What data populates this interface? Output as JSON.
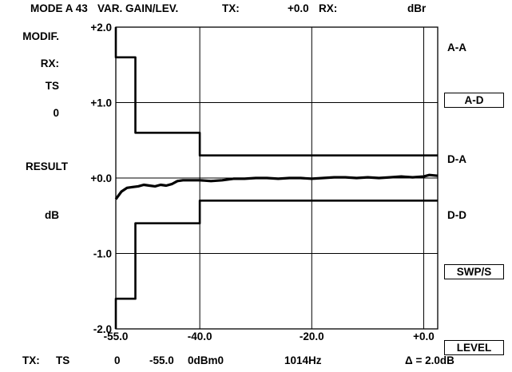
{
  "header": {
    "mode": "MODE A 43",
    "title": "VAR. GAIN/LEV.",
    "tx_label": "TX:",
    "tx_value": "+0.0",
    "rx_label": "RX:",
    "unit": "dBr"
  },
  "left_panel": {
    "modif": "MODIF.",
    "rx": "RX:",
    "ts": "TS",
    "zero": "0",
    "result": "RESULT",
    "db": "dB"
  },
  "right_panel": {
    "aa": "A-A",
    "ad_button": "A-D",
    "da": "D-A",
    "dd": "D-D",
    "swps_button": "SWP/S",
    "level_button": "LEVEL"
  },
  "footer": {
    "tx_label": "TX:",
    "ts": "TS",
    "zero": "0",
    "start": "-55.0",
    "level": "0dBm0",
    "freq": "1014Hz",
    "delta": "Δ = 2.0dB"
  },
  "chart_data": {
    "type": "line",
    "xlim": [
      -55.0,
      2.5
    ],
    "ylim": [
      -2.0,
      2.0
    ],
    "x_ticks": [
      -55.0,
      -40.0,
      -20.0,
      0.0
    ],
    "x_tick_labels": [
      "-55.0",
      "-40.0",
      "-20.0",
      "+0.0"
    ],
    "y_ticks": [
      2.0,
      1.0,
      0.0,
      -1.0,
      -2.0
    ],
    "y_tick_labels": [
      "+2.0",
      "+1.0",
      "+0.0",
      "-1.0",
      "-2.0"
    ],
    "grid": true,
    "series": [
      {
        "x": [
          -55.0,
          -54.0,
          -53.0,
          -52.0,
          -51.0,
          -50.0,
          -49.0,
          -48.0,
          -47.0,
          -46.0,
          -45.0,
          -44.0,
          -43.0,
          -42.0,
          -41.0,
          -40.0,
          -38.0,
          -36.0,
          -34.0,
          -32.0,
          -30.0,
          -28.0,
          -26.0,
          -24.0,
          -22.0,
          -20.0,
          -18.0,
          -16.0,
          -14.0,
          -12.0,
          -10.0,
          -8.0,
          -6.0,
          -4.0,
          -2.0,
          0.0,
          1.0,
          2.5
        ],
        "y": [
          -0.28,
          -0.18,
          -0.13,
          -0.12,
          -0.11,
          -0.09,
          -0.1,
          -0.11,
          -0.09,
          -0.1,
          -0.08,
          -0.04,
          -0.03,
          -0.03,
          -0.03,
          -0.03,
          -0.04,
          -0.03,
          -0.01,
          -0.01,
          0.0,
          0.0,
          -0.01,
          0.0,
          0.0,
          -0.01,
          0.0,
          0.01,
          0.01,
          0.0,
          0.01,
          0.0,
          0.01,
          0.02,
          0.01,
          0.02,
          0.04,
          0.03
        ]
      },
      {
        "x": [
          -55.0,
          -55.0,
          -51.5,
          -51.5,
          -40.0,
          -40.0,
          2.5
        ],
        "y": [
          2.0,
          1.6,
          1.6,
          0.6,
          0.6,
          0.3,
          0.3
        ]
      },
      {
        "x": [
          -55.0,
          -55.0,
          -51.5,
          -51.5,
          -40.0,
          -40.0,
          2.5
        ],
        "y": [
          -2.0,
          -1.6,
          -1.6,
          -0.6,
          -0.6,
          -0.3,
          -0.3
        ]
      }
    ]
  }
}
